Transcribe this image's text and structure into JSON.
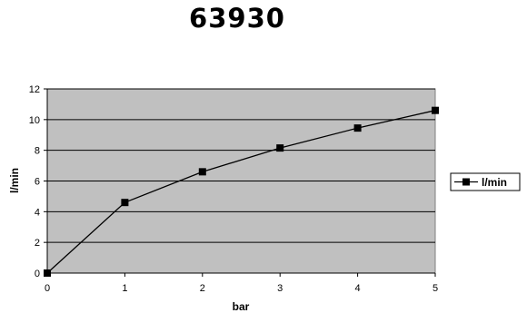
{
  "chart_data": {
    "type": "line",
    "title": "63930",
    "xlabel": "bar",
    "ylabel": "l/min",
    "x": [
      0,
      1,
      2,
      3,
      4,
      5
    ],
    "series": [
      {
        "name": "l/min",
        "values": [
          0,
          4.6,
          6.6,
          8.15,
          9.45,
          10.6
        ],
        "color": "#000000"
      }
    ],
    "xlim": [
      0,
      5
    ],
    "ylim": [
      0,
      12
    ],
    "xticks": [
      "0",
      "1",
      "2",
      "3",
      "4",
      "5"
    ],
    "yticks": [
      "0",
      "2",
      "4",
      "6",
      "8",
      "10",
      "12"
    ],
    "grid": true,
    "plot_background": "#c0c0c0",
    "legend_position": "right",
    "marker": "square"
  }
}
